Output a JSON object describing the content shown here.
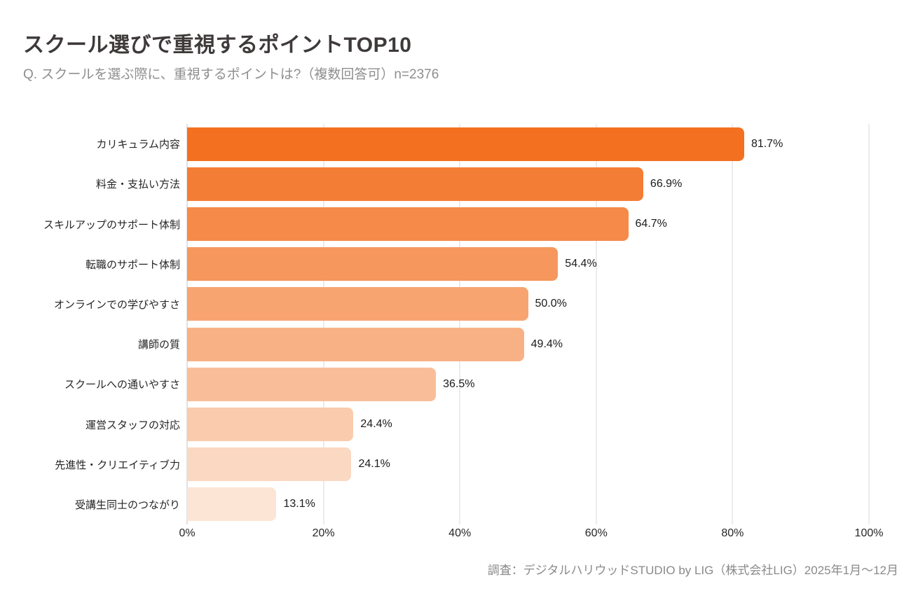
{
  "header": {
    "title": "スクール選びで重視するポイントTOP10",
    "subtitle": "Q. スクールを選ぶ際に、重視するポイントは?（複数回答可）n=2376"
  },
  "chart_data": {
    "type": "bar",
    "orientation": "horizontal",
    "title": "スクール選びで重視するポイントTOP10",
    "subtitle": "Q. スクールを選ぶ際に、重視するポイントは?（複数回答可）n=2376",
    "sample_size": "n=2376",
    "categories": [
      "カリキュラム内容",
      "料金・支払い方法",
      "スキルアップのサポート体制",
      "転職のサポート体制",
      "オンラインでの学びやすさ",
      "講師の質",
      "スクールへの通いやすさ",
      "運営スタッフの対応",
      "先進性・クリエイティブ力",
      "受講生同士のつながり"
    ],
    "values": [
      81.7,
      66.9,
      64.7,
      54.4,
      50.0,
      49.4,
      36.5,
      24.4,
      24.1,
      13.1
    ],
    "value_suffix": "%",
    "bar_colors": [
      "#F37021",
      "#F47D35",
      "#F58A49",
      "#F6975D",
      "#F7A471",
      "#F8B185",
      "#F9BE99",
      "#FACBAD",
      "#FBD8C1",
      "#FCE5D5"
    ],
    "xlabel": "",
    "ylabel": "",
    "xlim": [
      0,
      100
    ],
    "x_ticks": [
      "0%",
      "20%",
      "40%",
      "60%",
      "80%",
      "100%"
    ],
    "x_tick_values": [
      0,
      20,
      40,
      60,
      80,
      100
    ],
    "grid": true,
    "gridline_color": "#d9d9d9",
    "legend": "none"
  },
  "footer": {
    "source": "調査：デジタルハリウッドSTUDIO by LIG（株式会社LIG）2025年1月〜12月"
  }
}
